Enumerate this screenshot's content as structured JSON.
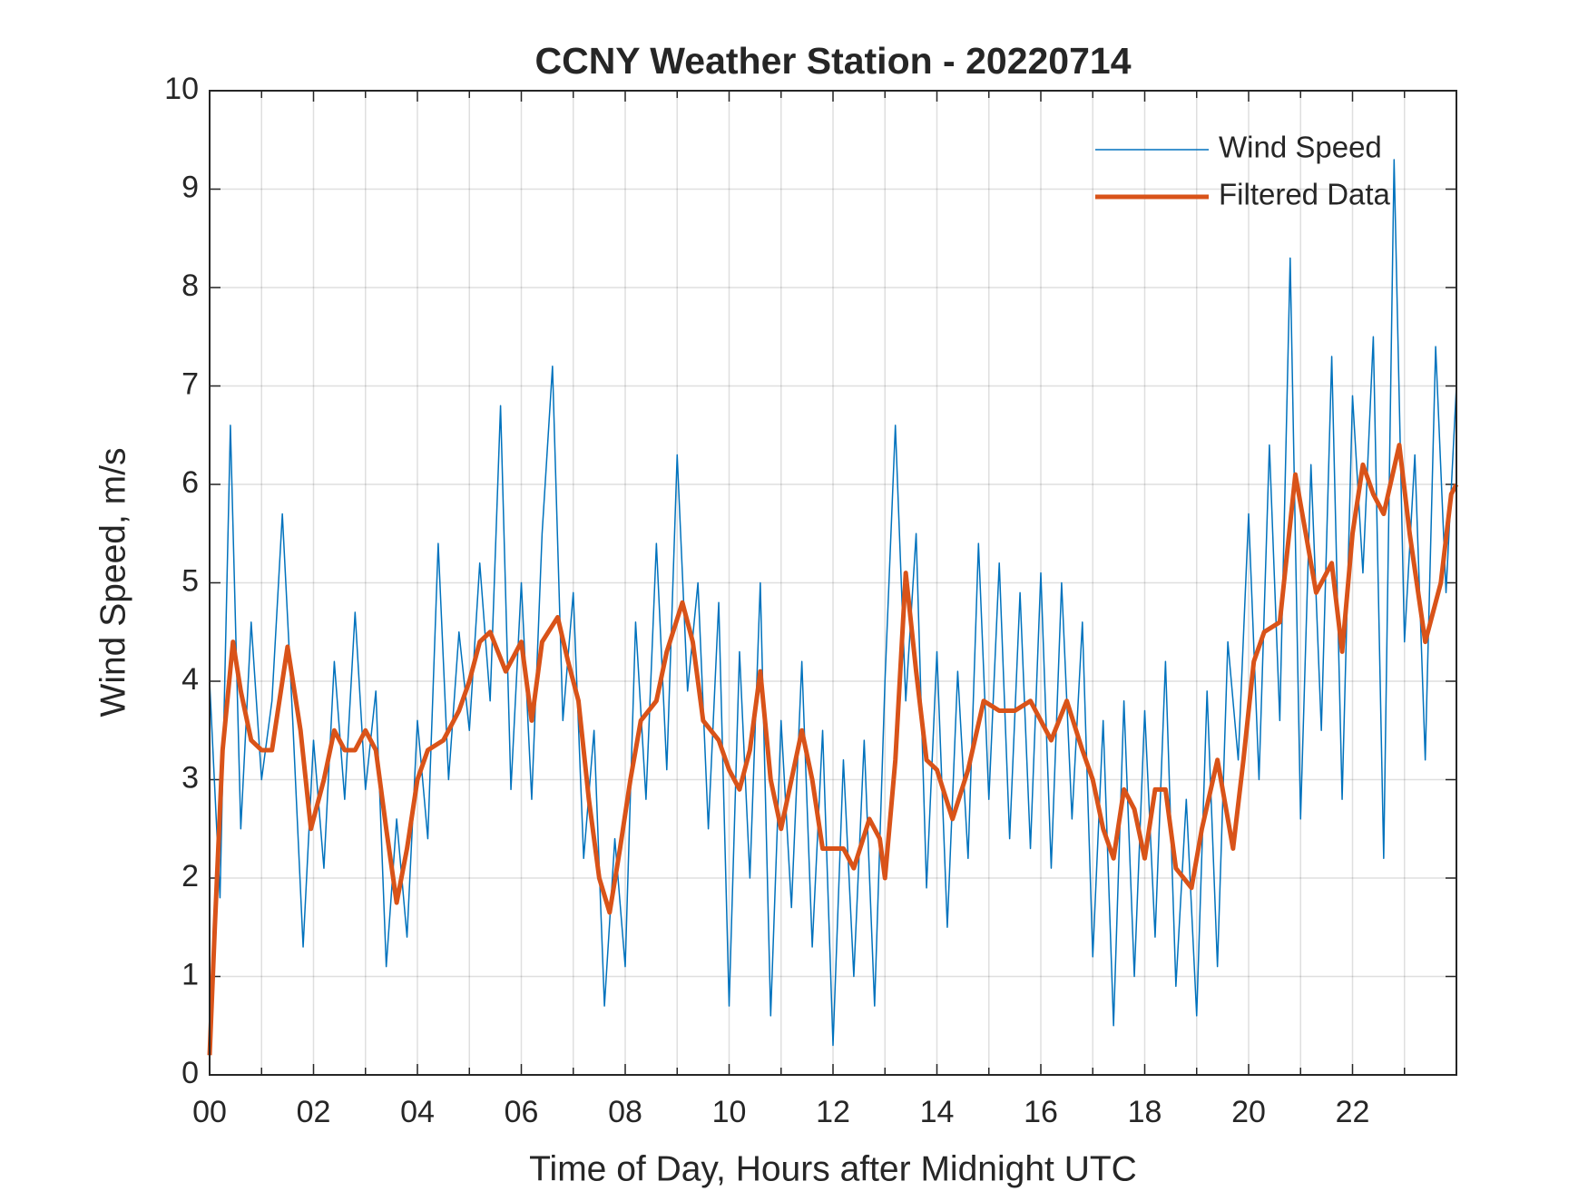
{
  "chart_data": {
    "type": "line",
    "title": "CCNY Weather Station - 20220714",
    "x_label": "Time of Day, Hours after Midnight UTC",
    "y_label": "Wind Speed, m/s",
    "xlim": [
      0,
      24
    ],
    "ylim": [
      0,
      10
    ],
    "xticks": [
      {
        "value": 0,
        "label": "00"
      },
      {
        "value": 2,
        "label": "02"
      },
      {
        "value": 4,
        "label": "04"
      },
      {
        "value": 6,
        "label": "06"
      },
      {
        "value": 8,
        "label": "08"
      },
      10,
      12,
      14,
      16,
      18,
      20,
      22
    ],
    "minor_xticks": [
      1,
      3,
      5,
      7,
      9,
      11,
      13,
      15,
      17,
      19,
      21,
      23
    ],
    "yticks": [
      0,
      1,
      2,
      3,
      4,
      5,
      6,
      7,
      8,
      9,
      10
    ],
    "grid": true,
    "legend": "northeast",
    "series": [
      {
        "name": "Wind Speed",
        "color": "#0072bd",
        "width": 1.5,
        "x": [
          0,
          0.2,
          0.4,
          0.6,
          0.8,
          1,
          1.2,
          1.4,
          1.6,
          1.8,
          2,
          2.2,
          2.4,
          2.6,
          2.8,
          3,
          3.2,
          3.4,
          3.6,
          3.8,
          4,
          4.2,
          4.4,
          4.6,
          4.8,
          5,
          5.2,
          5.4,
          5.6,
          5.8,
          6,
          6.2,
          6.4,
          6.6,
          6.8,
          7,
          7.2,
          7.4,
          7.6,
          7.8,
          8,
          8.2,
          8.4,
          8.6,
          8.8,
          9,
          9.2,
          9.4,
          9.6,
          9.8,
          10,
          10.2,
          10.4,
          10.6,
          10.8,
          11,
          11.2,
          11.4,
          11.6,
          11.8,
          12,
          12.2,
          12.4,
          12.6,
          12.8,
          13,
          13.2,
          13.4,
          13.6,
          13.8,
          14,
          14.2,
          14.4,
          14.6,
          14.8,
          15,
          15.2,
          15.4,
          15.6,
          15.8,
          16,
          16.2,
          16.4,
          16.6,
          16.8,
          17,
          17.2,
          17.4,
          17.6,
          17.8,
          18,
          18.2,
          18.4,
          18.6,
          18.8,
          19,
          19.2,
          19.4,
          19.6,
          19.8,
          20,
          20.2,
          20.4,
          20.6,
          20.8,
          21,
          21.2,
          21.4,
          21.6,
          21.8,
          22,
          22.2,
          22.4,
          22.6,
          22.8,
          23,
          23.2,
          23.4,
          23.6,
          23.8,
          24
        ],
        "values": [
          4.0,
          1.8,
          6.6,
          2.5,
          4.6,
          3.0,
          3.8,
          5.7,
          3.6,
          1.3,
          3.4,
          2.1,
          4.2,
          2.8,
          4.7,
          2.9,
          3.9,
          1.1,
          2.6,
          1.4,
          3.6,
          2.4,
          5.4,
          3.0,
          4.5,
          3.5,
          5.2,
          3.8,
          6.8,
          2.9,
          5.0,
          2.8,
          5.5,
          7.2,
          3.6,
          4.9,
          2.2,
          3.5,
          0.7,
          2.4,
          1.1,
          4.6,
          2.8,
          5.4,
          3.1,
          6.3,
          3.9,
          5.0,
          2.5,
          4.8,
          0.7,
          4.3,
          2.0,
          5.0,
          0.6,
          3.6,
          1.7,
          4.2,
          1.3,
          3.5,
          0.3,
          3.2,
          1.0,
          3.4,
          0.7,
          4.0,
          6.6,
          3.8,
          5.5,
          1.9,
          4.3,
          1.5,
          4.1,
          2.2,
          5.4,
          2.8,
          5.2,
          2.4,
          4.9,
          2.3,
          5.1,
          2.1,
          5.0,
          2.6,
          4.6,
          1.2,
          3.6,
          0.5,
          3.8,
          1.0,
          3.7,
          1.4,
          4.2,
          0.9,
          2.8,
          0.6,
          3.9,
          1.1,
          4.4,
          3.2,
          5.7,
          3.0,
          6.4,
          3.6,
          8.3,
          2.6,
          6.2,
          3.5,
          7.3,
          2.8,
          6.9,
          5.1,
          7.5,
          2.2,
          9.3,
          4.4,
          6.3,
          3.2,
          7.4,
          4.9,
          7.0
        ]
      },
      {
        "name": "Filtered Data",
        "color": "#d95319",
        "width": 5,
        "x": [
          0,
          0.1,
          0.25,
          0.45,
          0.6,
          0.8,
          1,
          1.2,
          1.5,
          1.75,
          1.95,
          2.2,
          2.4,
          2.6,
          2.8,
          3,
          3.2,
          3.4,
          3.6,
          3.8,
          4,
          4.2,
          4.5,
          4.8,
          5,
          5.2,
          5.4,
          5.7,
          6,
          6.2,
          6.4,
          6.7,
          6.9,
          7.1,
          7.3,
          7.5,
          7.7,
          7.9,
          8.1,
          8.3,
          8.6,
          8.8,
          9.1,
          9.3,
          9.5,
          9.8,
          10,
          10.2,
          10.4,
          10.6,
          10.8,
          11,
          11.2,
          11.4,
          11.6,
          11.8,
          12,
          12.2,
          12.4,
          12.7,
          12.9,
          13,
          13.2,
          13.4,
          13.6,
          13.8,
          14,
          14.3,
          14.6,
          14.9,
          15.2,
          15.5,
          15.8,
          16,
          16.2,
          16.5,
          16.8,
          17,
          17.2,
          17.4,
          17.6,
          17.8,
          18,
          18.2,
          18.4,
          18.6,
          18.9,
          19.1,
          19.4,
          19.7,
          19.9,
          20.1,
          20.3,
          20.6,
          20.9,
          21.1,
          21.3,
          21.6,
          21.8,
          22,
          22.2,
          22.4,
          22.6,
          22.9,
          23.1,
          23.4,
          23.7,
          23.9,
          24
        ],
        "values": [
          0.2,
          1.5,
          3.3,
          4.4,
          3.9,
          3.4,
          3.3,
          3.3,
          4.35,
          3.5,
          2.5,
          3.0,
          3.5,
          3.3,
          3.3,
          3.5,
          3.3,
          2.5,
          1.75,
          2.3,
          3.0,
          3.3,
          3.4,
          3.7,
          4.0,
          4.4,
          4.5,
          4.1,
          4.4,
          3.6,
          4.4,
          4.65,
          4.2,
          3.8,
          2.8,
          2.0,
          1.65,
          2.3,
          3.0,
          3.6,
          3.8,
          4.3,
          4.8,
          4.4,
          3.6,
          3.4,
          3.1,
          2.9,
          3.3,
          4.1,
          3.0,
          2.5,
          3.0,
          3.5,
          3.0,
          2.3,
          2.3,
          2.3,
          2.1,
          2.6,
          2.4,
          2.0,
          3.2,
          5.1,
          4.1,
          3.2,
          3.1,
          2.6,
          3.1,
          3.8,
          3.7,
          3.7,
          3.8,
          3.6,
          3.4,
          3.8,
          3.3,
          3.0,
          2.5,
          2.2,
          2.9,
          2.7,
          2.2,
          2.9,
          2.9,
          2.1,
          1.9,
          2.5,
          3.2,
          2.3,
          3.2,
          4.2,
          4.5,
          4.6,
          6.1,
          5.5,
          4.9,
          5.2,
          4.3,
          5.5,
          6.2,
          5.9,
          5.7,
          6.4,
          5.5,
          4.4,
          5.0,
          5.9,
          6.0
        ]
      }
    ]
  }
}
